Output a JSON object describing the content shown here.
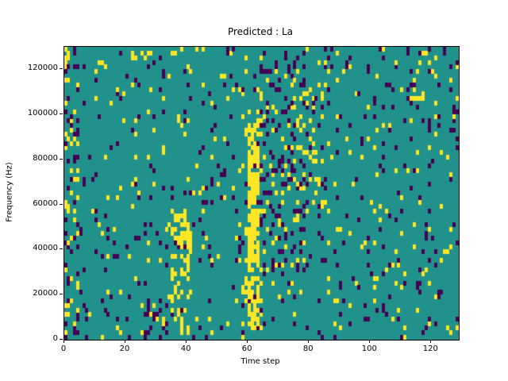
{
  "chart_data": {
    "type": "heatmap",
    "title": "Predicted : La",
    "xlabel": "Time step",
    "ylabel": "Frequency (Hz)",
    "x_range": [
      0,
      129
    ],
    "y_range": [
      0,
      130000
    ],
    "x_ticks": [
      0,
      20,
      40,
      60,
      80,
      100,
      120
    ],
    "x_tick_labels": [
      "0",
      "20",
      "40",
      "60",
      "80",
      "100",
      "120"
    ],
    "y_ticks": [
      0,
      20000,
      40000,
      60000,
      80000,
      100000,
      120000
    ],
    "y_tick_labels": [
      "0",
      "20000",
      "40000",
      "60000",
      "80000",
      "100000",
      "120000"
    ],
    "grid_cols": 129,
    "grid_rows": 65,
    "legend": "none",
    "grid": false,
    "colors": {
      "background_mid": "#21918c",
      "low": "#440154",
      "high": "#fde725"
    },
    "value_meaning": {
      "low": "dark purple cell",
      "mid": "teal background cell",
      "high": "yellow cell"
    },
    "pattern": {
      "seed": 42,
      "base_yellow_density": 0.035,
      "base_purple_density": 0.045,
      "features": [
        {
          "name": "strong-yellow-column-t60",
          "cols": [
            60,
            63
          ],
          "freq": [
            4000,
            94000
          ],
          "yellow": 0.7,
          "purple": 0.02
        },
        {
          "name": "yellow-halo-t60",
          "cols": [
            58,
            65
          ],
          "freq": [
            0,
            112000
          ],
          "yellow": 0.15,
          "purple": 0.06
        },
        {
          "name": "yellow-band-t35",
          "cols": [
            35,
            40
          ],
          "freq": [
            0,
            56000
          ],
          "yellow": 0.3,
          "purple": 0.05
        },
        {
          "name": "yellow-core-t38",
          "cols": [
            38,
            41
          ],
          "freq": [
            36000,
            52000
          ],
          "yellow": 0.6,
          "purple": 0.02
        },
        {
          "name": "purple-cluster-t65-78",
          "cols": [
            64,
            78
          ],
          "freq": [
            28000,
            126000
          ],
          "yellow": 0.06,
          "purple": 0.17
        },
        {
          "name": "yellow-scatter-t78",
          "cols": [
            76,
            84
          ],
          "freq": [
            55000,
            115000
          ],
          "yellow": 0.13,
          "purple": 0.06
        },
        {
          "name": "dense-left-edge",
          "cols": [
            0,
            4
          ],
          "freq": [
            0,
            130000
          ],
          "yellow": 0.13,
          "purple": 0.13
        },
        {
          "name": "yellow-top-left",
          "cols": [
            0,
            1
          ],
          "freq": [
            112000,
            127000
          ],
          "yellow": 0.5,
          "purple": 0.1
        },
        {
          "name": "yellow-low-t100",
          "cols": [
            96,
            104
          ],
          "freq": [
            14000,
            30000
          ],
          "yellow": 0.13,
          "purple": 0.05
        },
        {
          "name": "yellow-high-t114",
          "cols": [
            112,
            117
          ],
          "freq": [
            104000,
            118000
          ],
          "yellow": 0.2,
          "purple": 0.04
        },
        {
          "name": "purple-low-t28",
          "cols": [
            24,
            33
          ],
          "freq": [
            0,
            16000
          ],
          "yellow": 0.08,
          "purple": 0.13
        },
        {
          "name": "purple-right-top",
          "cols": [
            120,
            128
          ],
          "freq": [
            80000,
            128000
          ],
          "yellow": 0.03,
          "purple": 0.1
        }
      ]
    }
  }
}
